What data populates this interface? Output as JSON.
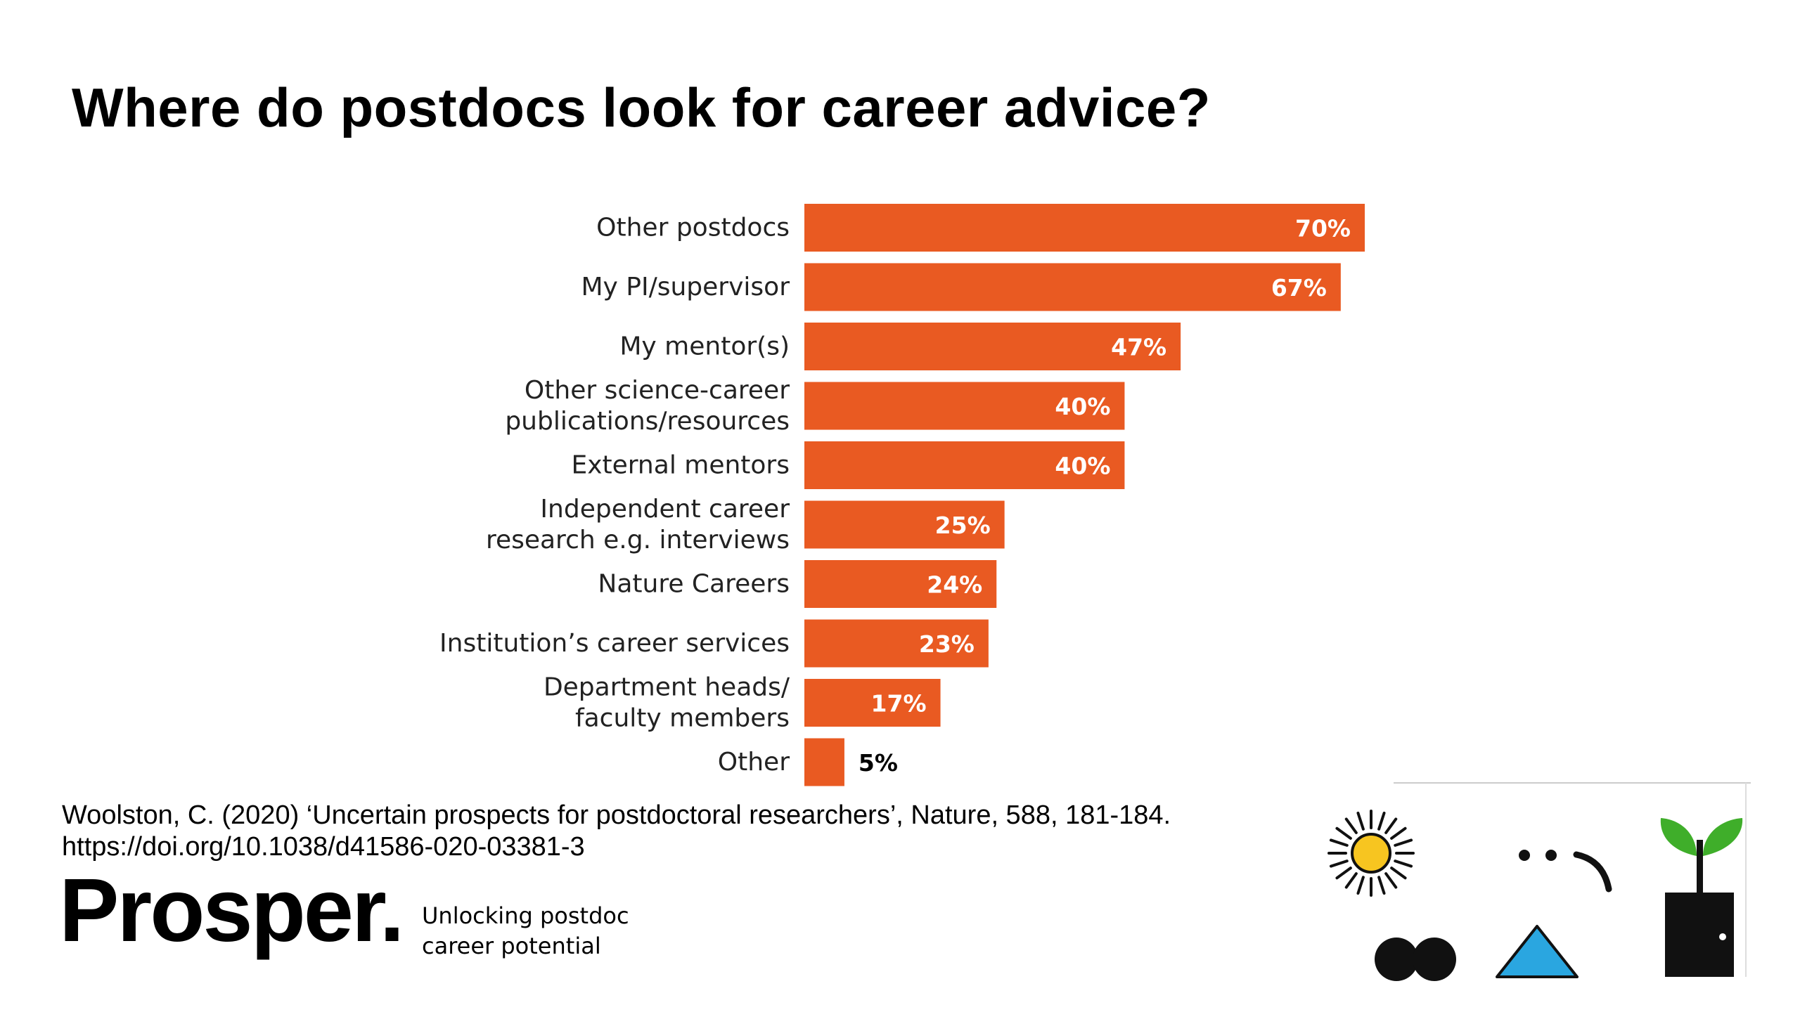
{
  "slide": {
    "title": "Where do postdocs look for career advice?",
    "citation_line1": "Woolston, C. (2020) ‘Uncertain prospects for postdoctoral researchers’, Nature, 588, 181-184.",
    "citation_line2": "https://doi.org/10.1038/d41586-020-03381-3",
    "brand_name": "Prosper.",
    "tagline_line1": "Unlocking postdoc",
    "tagline_line2": "career potential"
  },
  "colors": {
    "bar": "#E95A22",
    "label_inside": "#FFFFFF",
    "label_outside": "#000000",
    "sun": "#F7C520",
    "triangle": "#2AA6E0",
    "leaf": "#3FAE2A"
  },
  "icons": [
    "sun-icon",
    "face-icon",
    "plant-pot-icon",
    "two-circles-icon",
    "triangle-icon"
  ],
  "chart_data": {
    "type": "bar",
    "orientation": "horizontal",
    "title": "Where do postdocs look for career advice?",
    "categories": [
      [
        "Other postdocs"
      ],
      [
        "My PI/supervisor"
      ],
      [
        "My mentor(s)"
      ],
      [
        "Other science-career",
        "publications/resources"
      ],
      [
        "External mentors"
      ],
      [
        "Independent career",
        "research e.g. interviews"
      ],
      [
        "Nature Careers"
      ],
      [
        "Institution’s career services"
      ],
      [
        "Department heads/",
        "faculty members"
      ],
      [
        "Other"
      ]
    ],
    "values": [
      70,
      67,
      47,
      40,
      40,
      25,
      24,
      23,
      17,
      5
    ],
    "value_labels": [
      "70%",
      "67%",
      "47%",
      "40%",
      "40%",
      "25%",
      "24%",
      "23%",
      "17%",
      "5%"
    ],
    "unit": "%",
    "xlim": [
      0,
      70
    ],
    "grid": false,
    "legend": "none"
  }
}
